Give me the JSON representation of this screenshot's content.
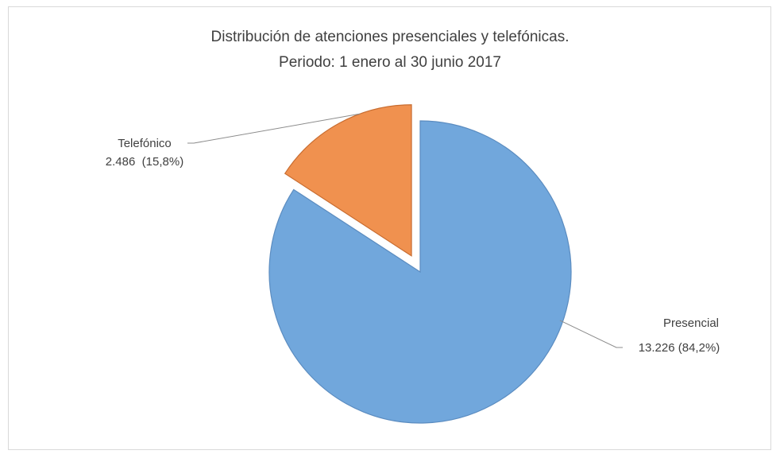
{
  "chart_data": {
    "type": "pie",
    "title": "Distribución de atenciones presenciales y telefónicas.",
    "subtitle": "Periodo: 1 enero al 30 junio 2017",
    "categories": [
      "Presencial",
      "Telefónico"
    ],
    "values": [
      13226,
      2486
    ],
    "value_labels": [
      "13.226 (84,2%)",
      "2.486  (15,8%)"
    ],
    "colors": [
      "#71a7dc",
      "#f0914f"
    ],
    "exploded": [
      false,
      true
    ]
  }
}
